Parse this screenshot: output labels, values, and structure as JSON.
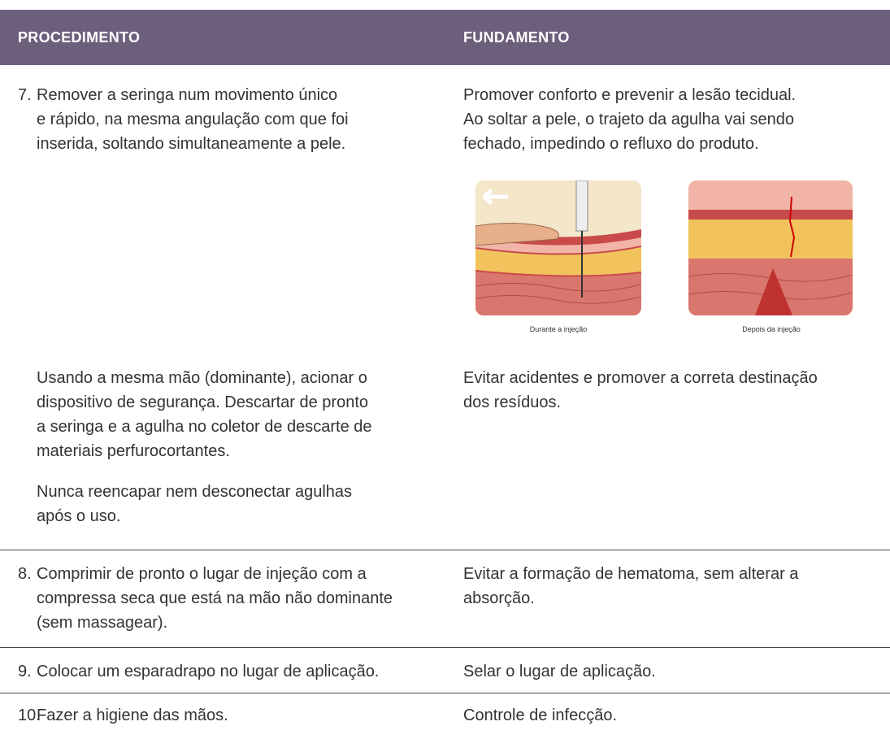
{
  "header": {
    "procedure": "PROCEDIMENTO",
    "rationale": "FUNDAMENTO"
  },
  "rows": [
    {
      "number": "7.",
      "procedure": [
        [
          "Remover a seringa num movimento único",
          "e rápido, na mesma angulação com que foi",
          "inserida, soltando simultaneamente a pele."
        ]
      ],
      "rationale": [
        [
          "Promover conforto e prevenir a lesão tecidual.",
          "Ao soltar a pele, o trajeto da agulha vai sendo",
          "fechado, impedindo o refluxo do produto."
        ]
      ],
      "figures": [
        {
          "caption": "Durante a injeção"
        },
        {
          "caption": "Depois da injeção"
        }
      ]
    },
    {
      "procedure": [
        [
          "Usando a mesma mão (dominante), acionar o",
          "dispositivo de segurança. Descartar de pronto",
          "a seringa e a agulha no coletor de descarte de",
          "materiais perfurocortantes."
        ],
        [
          "Nunca reencapar nem desconectar agulhas",
          "após o uso."
        ]
      ],
      "rationale": [
        [
          "Evitar acidentes e promover a correta destinação",
          "dos resíduos."
        ]
      ]
    },
    {
      "number": "8.",
      "procedure": [
        [
          "Comprimir de pronto o lugar de injeção com a",
          "compressa seca que está na mão não dominante",
          "(sem massagear)."
        ]
      ],
      "rationale": [
        [
          "Evitar a formação de hematoma, sem alterar a",
          "absorção."
        ]
      ]
    },
    {
      "number": "9.",
      "procedure": [
        [
          "Colocar um esparadrapo no lugar de aplicação."
        ]
      ],
      "rationale": [
        [
          "Selar o lugar de aplicação."
        ]
      ]
    },
    {
      "number": "10.",
      "procedure": [
        [
          "Fazer a higiene das mãos."
        ]
      ],
      "rationale": [
        [
          "Controle de infecção."
        ]
      ]
    }
  ]
}
